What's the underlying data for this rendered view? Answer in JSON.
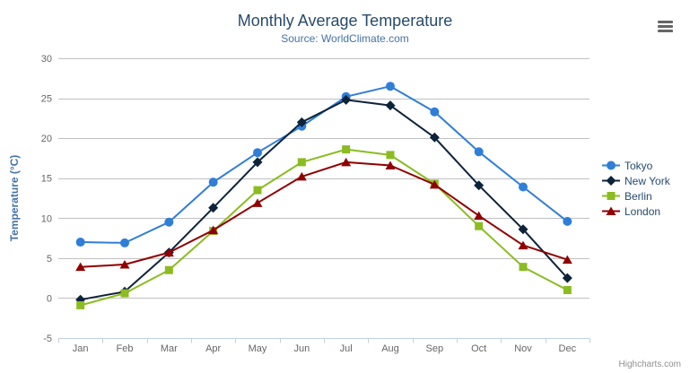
{
  "chart_data": {
    "type": "line",
    "title": "Monthly Average Temperature",
    "subtitle": "Source: WorldClimate.com",
    "ylabel": "Temperature (°C)",
    "xlabel": "",
    "categories": [
      "Jan",
      "Feb",
      "Mar",
      "Apr",
      "May",
      "Jun",
      "Jul",
      "Aug",
      "Sep",
      "Oct",
      "Nov",
      "Dec"
    ],
    "ylim": [
      -5,
      30
    ],
    "yticks": [
      -5,
      0,
      5,
      10,
      15,
      20,
      25,
      30
    ],
    "grid": true,
    "legend_position": "right",
    "series": [
      {
        "name": "Tokyo",
        "marker": "circle",
        "color": "#2f7ed8",
        "values": [
          7.0,
          6.9,
          9.5,
          14.5,
          18.2,
          21.5,
          25.2,
          26.5,
          23.3,
          18.3,
          13.9,
          9.6
        ]
      },
      {
        "name": "New York",
        "marker": "diamond",
        "color": "#0d233a",
        "values": [
          -0.2,
          0.8,
          5.7,
          11.3,
          17.0,
          22.0,
          24.8,
          24.1,
          20.1,
          14.1,
          8.6,
          2.5
        ]
      },
      {
        "name": "Berlin",
        "marker": "square",
        "color": "#8bbc21",
        "values": [
          -0.9,
          0.6,
          3.5,
          8.4,
          13.5,
          17.0,
          18.6,
          17.9,
          14.3,
          9.0,
          3.9,
          1.0
        ]
      },
      {
        "name": "London",
        "marker": "triangle",
        "color": "#910000",
        "values": [
          3.9,
          4.2,
          5.7,
          8.5,
          11.9,
          15.2,
          17.0,
          16.6,
          14.2,
          10.3,
          6.6,
          4.8
        ]
      }
    ]
  },
  "credits": "Highcharts.com",
  "icons": {
    "context_menu": "hamburger-icon"
  },
  "colors": {
    "title": "#274b6d",
    "subtitle": "#4572a7",
    "axis_title": "#4572a7",
    "tick_label": "#666666",
    "gridline": "#c0c0c0",
    "axis_line": "#c0d0e0",
    "legend_text": "#274b6d",
    "credits": "#909090",
    "menu_icon": "#666666",
    "background": "#ffffff"
  }
}
